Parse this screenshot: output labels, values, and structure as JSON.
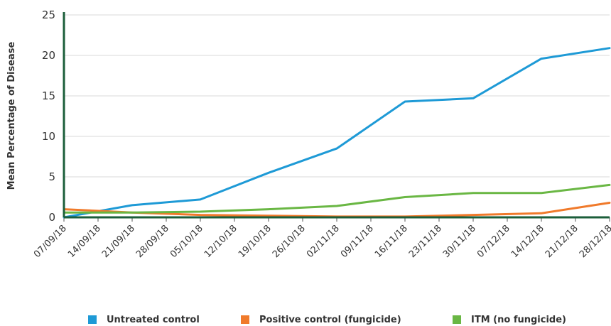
{
  "chart_data": {
    "type": "line",
    "title": "",
    "xlabel": "",
    "ylabel": "Mean Percentage of Disease",
    "ylim": [
      0,
      25
    ],
    "yticks": [
      "0",
      "5",
      "10",
      "15",
      "20",
      "25"
    ],
    "grid": true,
    "legend_position": "bottom",
    "categories": [
      "07/09/18",
      "14/09/18",
      "21/09/18",
      "28/09/18",
      "05/10/18",
      "12/10/18",
      "19/10/18",
      "26/10/18",
      "02/11/18",
      "09/11/18",
      "16/11/18",
      "23/11/18",
      "30/11/18",
      "07/12/18",
      "14/12/18",
      "21/12/18",
      "28/12/18"
    ],
    "series": [
      {
        "name": "Untreated control",
        "color": "#1e9ad6",
        "points": [
          [
            0,
            0.0
          ],
          [
            2,
            1.5
          ],
          [
            4,
            2.2
          ],
          [
            6,
            5.5
          ],
          [
            8,
            8.5
          ],
          [
            10,
            14.3
          ],
          [
            12,
            14.7
          ],
          [
            14,
            19.6
          ],
          [
            16,
            20.9
          ]
        ]
      },
      {
        "name": "Positive control (fungicide)",
        "color": "#f07a2b",
        "points": [
          [
            0,
            1.0
          ],
          [
            2,
            0.6
          ],
          [
            4,
            0.3
          ],
          [
            6,
            0.2
          ],
          [
            8,
            0.1
          ],
          [
            10,
            0.1
          ],
          [
            12,
            0.3
          ],
          [
            14,
            0.5
          ],
          [
            16,
            1.8
          ]
        ]
      },
      {
        "name": "ITM (no fungicide)",
        "color": "#6ab744",
        "points": [
          [
            0,
            0.6
          ],
          [
            2,
            0.6
          ],
          [
            4,
            0.7
          ],
          [
            6,
            1.0
          ],
          [
            8,
            1.4
          ],
          [
            10,
            2.5
          ],
          [
            12,
            3.0
          ],
          [
            14,
            3.0
          ],
          [
            16,
            4.0
          ]
        ]
      }
    ]
  }
}
